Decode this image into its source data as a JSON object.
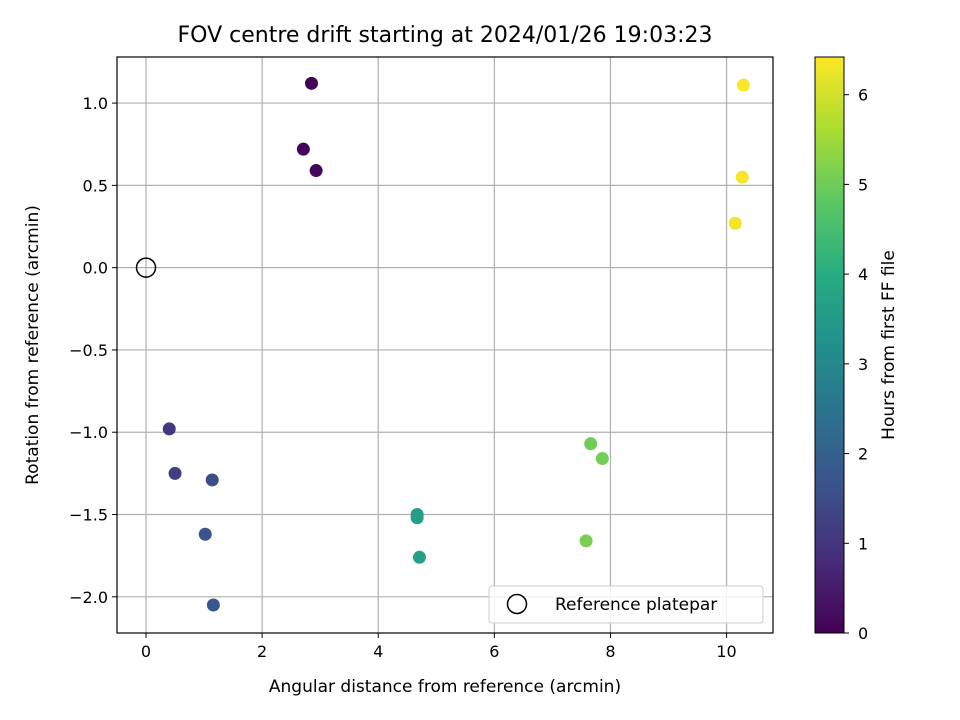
{
  "chart_data": {
    "type": "scatter",
    "title": "FOV centre drift starting at 2024/01/26 19:03:23",
    "xlabel": "Angular distance from reference (arcmin)",
    "ylabel": "Rotation from reference (arcmin)",
    "xlim": [
      -0.5,
      10.8
    ],
    "ylim": [
      -2.22,
      1.28
    ],
    "xticks": [
      0,
      2,
      4,
      6,
      8,
      10
    ],
    "xtick_labels": [
      "0",
      "2",
      "4",
      "6",
      "8",
      "10"
    ],
    "yticks": [
      -2.0,
      -1.5,
      -1.0,
      -0.5,
      0.0,
      0.5,
      1.0
    ],
    "ytick_labels": [
      "−2.0",
      "−1.5",
      "−1.0",
      "−0.5",
      "0.0",
      "0.5",
      "1.0"
    ],
    "grid": true,
    "colormap": "viridis",
    "colorbar": {
      "label": "Hours from first FF file",
      "range": [
        0,
        6.42
      ],
      "ticks": [
        0,
        1,
        2,
        3,
        4,
        5,
        6
      ],
      "tick_labels": [
        "0",
        "1",
        "2",
        "3",
        "4",
        "5",
        "6"
      ]
    },
    "points": [
      {
        "x": 2.85,
        "y": 1.12,
        "hours": 0.02
      },
      {
        "x": 2.71,
        "y": 0.72,
        "hours": 0.08
      },
      {
        "x": 2.93,
        "y": 0.59,
        "hours": 0.13
      },
      {
        "x": 0.4,
        "y": -0.98,
        "hours": 1.05
      },
      {
        "x": 0.5,
        "y": -1.25,
        "hours": 1.25
      },
      {
        "x": 1.14,
        "y": -1.29,
        "hours": 1.55
      },
      {
        "x": 1.02,
        "y": -1.62,
        "hours": 1.65
      },
      {
        "x": 1.16,
        "y": -2.05,
        "hours": 1.75
      },
      {
        "x": 4.67,
        "y": -1.5,
        "hours": 3.55
      },
      {
        "x": 4.67,
        "y": -1.52,
        "hours": 3.6
      },
      {
        "x": 4.71,
        "y": -1.76,
        "hours": 3.65
      },
      {
        "x": 7.66,
        "y": -1.07,
        "hours": 5.0
      },
      {
        "x": 7.86,
        "y": -1.16,
        "hours": 5.05
      },
      {
        "x": 7.58,
        "y": -1.66,
        "hours": 5.1
      },
      {
        "x": 10.29,
        "y": 1.11,
        "hours": 6.4
      },
      {
        "x": 10.27,
        "y": 0.55,
        "hours": 6.35
      },
      {
        "x": 10.15,
        "y": 0.27,
        "hours": 6.3
      }
    ],
    "reference": {
      "x": 0,
      "y": 0,
      "label": "Reference platepar"
    },
    "legend": {
      "entries": [
        "Reference platepar"
      ],
      "position": "lower-right"
    }
  }
}
